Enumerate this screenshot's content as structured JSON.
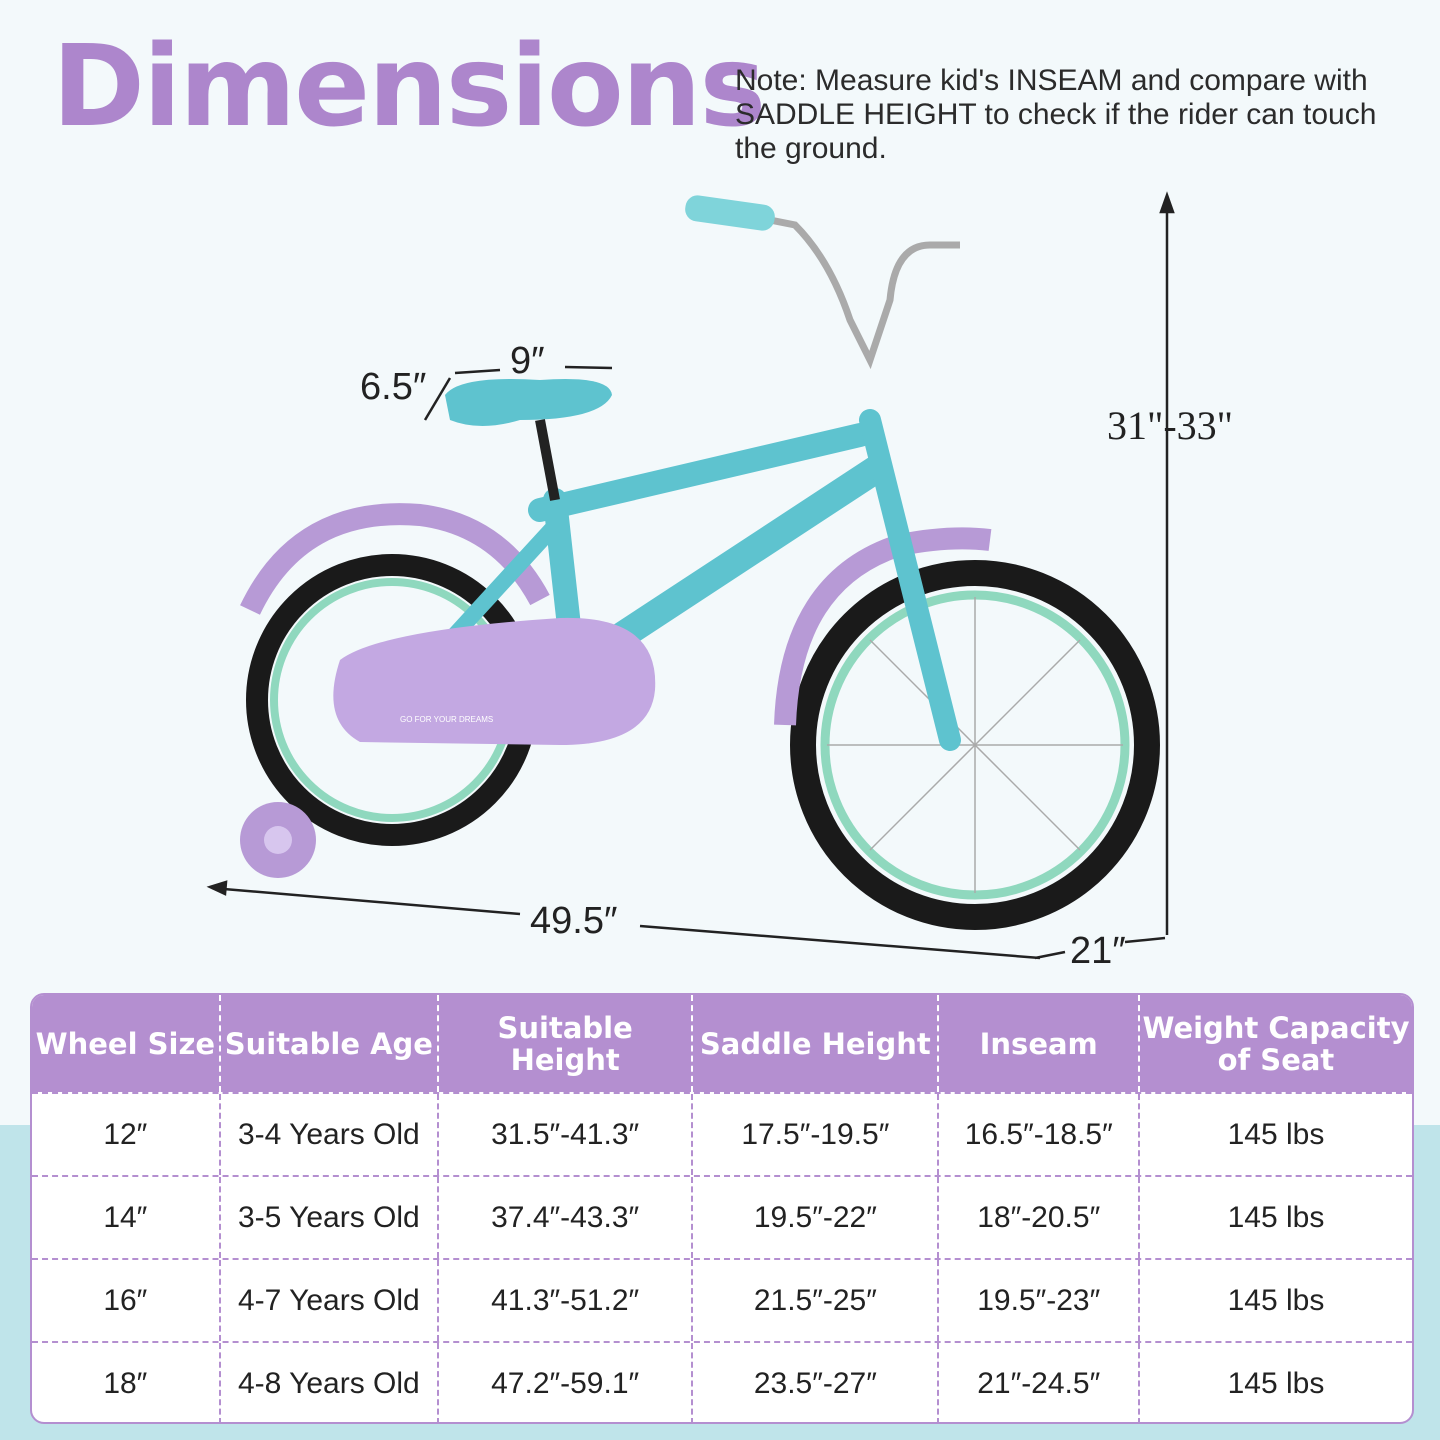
{
  "title": "Dimensions",
  "note": "Note: Measure kid's INSEAM and compare with SADDLE HEIGHT to check if the rider can touch the ground.",
  "bike_text": "GO FOR YOUR DREAMS",
  "dimensions": {
    "seat_width": "9″",
    "seat_depth": "6.5″",
    "height": "31\"-33\"",
    "length": "49.5″",
    "width": "21″"
  },
  "colors": {
    "title": "#ad86cc",
    "header": "#b48fd0",
    "frame": "#5ec3cf",
    "fender": "#b79ad6"
  },
  "table": {
    "headers": [
      "Wheel Size",
      "Suitable Age",
      "Suitable Height",
      "Saddle Height",
      "Inseam",
      "Weight Capacity of Seat"
    ],
    "rows": [
      [
        "12″",
        "3-4 Years Old",
        "31.5″-41.3″",
        "17.5″-19.5″",
        "16.5″-18.5″",
        "145 lbs"
      ],
      [
        "14″",
        "3-5 Years Old",
        "37.4″-43.3″",
        "19.5″-22″",
        "18″-20.5″",
        "145 lbs"
      ],
      [
        "16″",
        "4-7 Years Old",
        "41.3″-51.2″",
        "21.5″-25″",
        "19.5″-23″",
        "145 lbs"
      ],
      [
        "18″",
        "4-8 Years Old",
        "47.2″-59.1″",
        "23.5″-27″",
        "21″-24.5″",
        "145 lbs"
      ]
    ]
  }
}
